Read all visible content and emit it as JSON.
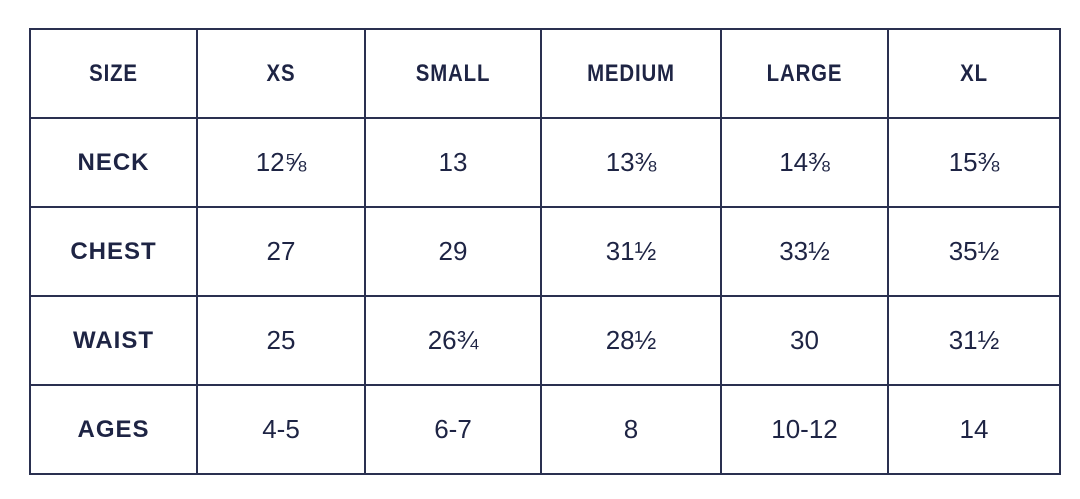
{
  "table": {
    "header": [
      "SIZE",
      "XS",
      "SMALL",
      "MEDIUM",
      "LARGE",
      "XL"
    ],
    "rows": [
      [
        "NECK",
        "12⅝",
        "13",
        "13⅜",
        "14⅜",
        "15⅜"
      ],
      [
        "CHEST",
        "27",
        "29",
        "31½",
        "33½",
        "35½"
      ],
      [
        "WAIST",
        "25",
        "26¾",
        "28½",
        "30",
        "31½"
      ],
      [
        "AGES",
        "4-5",
        "6-7",
        "8",
        "10-12",
        "14"
      ]
    ]
  }
}
